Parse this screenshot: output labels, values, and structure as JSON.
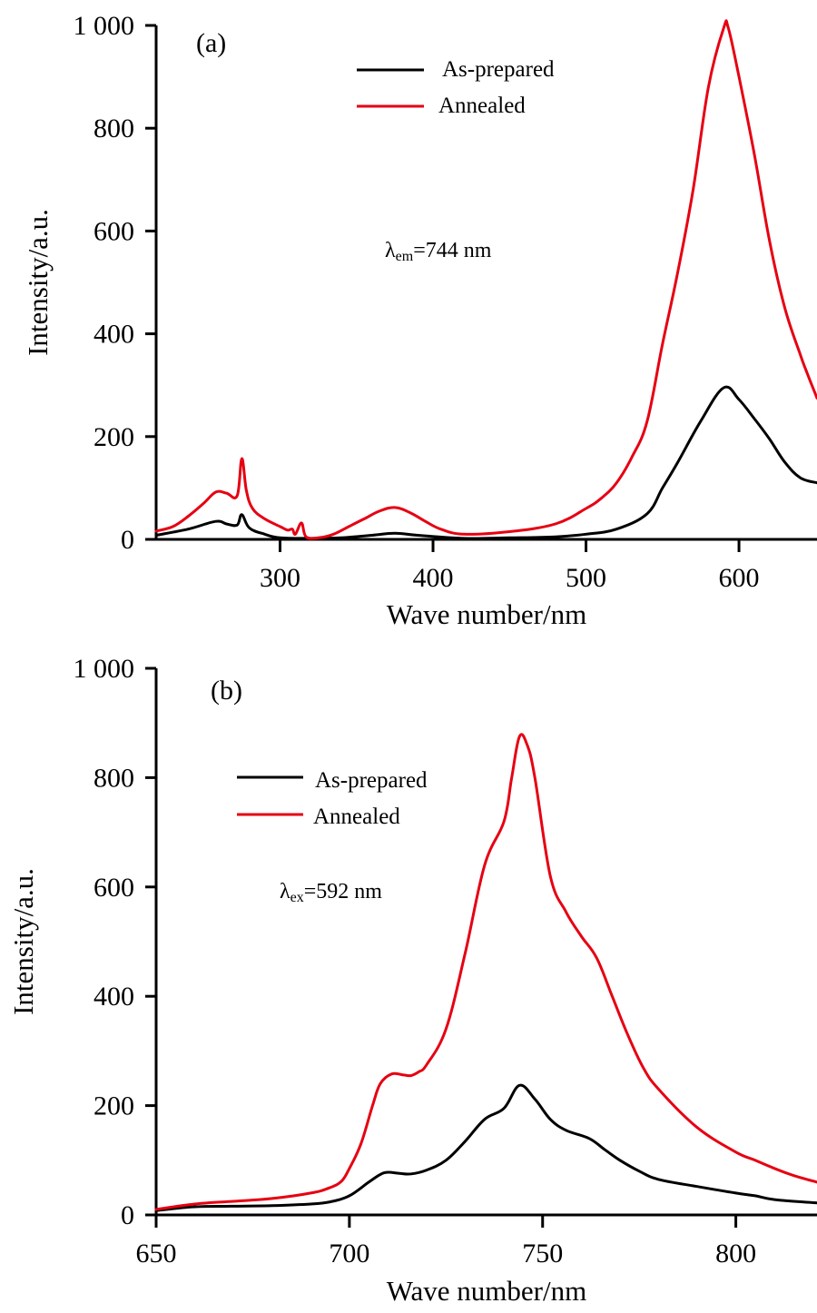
{
  "chart_data": [
    {
      "type": "line",
      "panel_label": "(a)",
      "xlabel": "Wave number/nm",
      "ylabel": "Intensity/a.u.",
      "xlim": [
        219,
        651
      ],
      "ylim": [
        0,
        1000
      ],
      "xticks": [
        300,
        400,
        500,
        600
      ],
      "xtick_labels": [
        "300",
        "400",
        "500",
        "600"
      ],
      "yticks": [
        0,
        200,
        400,
        600,
        800,
        1000
      ],
      "ytick_labels": [
        "0",
        "200",
        "400",
        "600",
        "800",
        "1 000"
      ],
      "grid": false,
      "legend_position": "top-center",
      "annotation": {
        "prefix": "λ",
        "sub": "em",
        "suffix": "=744 nm"
      },
      "series": [
        {
          "name": "As-prepared",
          "color": "#000000",
          "x": [
            219,
            240,
            258,
            265,
            272,
            275,
            280,
            290,
            300,
            320,
            340,
            360,
            375,
            390,
            420,
            450,
            480,
            500,
            520,
            540,
            550,
            560,
            575,
            590,
            600,
            610,
            620,
            630,
            640,
            651
          ],
          "y": [
            8,
            20,
            35,
            30,
            28,
            48,
            22,
            10,
            3,
            2,
            3,
            8,
            12,
            8,
            2,
            3,
            5,
            10,
            20,
            50,
            100,
            150,
            230,
            295,
            272,
            235,
            195,
            150,
            120,
            110
          ]
        },
        {
          "name": "Annealed",
          "color": "#e60012",
          "x": [
            219,
            230,
            240,
            250,
            258,
            265,
            272,
            275,
            278,
            282,
            290,
            300,
            305,
            308,
            310,
            314,
            317,
            325,
            335,
            345,
            355,
            365,
            375,
            385,
            395,
            405,
            420,
            450,
            480,
            500,
            510,
            520,
            530,
            540,
            550,
            560,
            570,
            580,
            590,
            593,
            600,
            610,
            620,
            630,
            640,
            645,
            651
          ],
          "y": [
            16,
            25,
            45,
            70,
            92,
            90,
            85,
            157,
            95,
            60,
            40,
            25,
            18,
            20,
            10,
            32,
            5,
            3,
            10,
            25,
            40,
            55,
            62,
            52,
            35,
            20,
            10,
            15,
            30,
            60,
            80,
            110,
            160,
            230,
            380,
            520,
            680,
            880,
            995,
            995,
            900,
            750,
            580,
            450,
            360,
            320,
            275
          ]
        }
      ]
    },
    {
      "type": "line",
      "panel_label": "(b)",
      "xlabel": "Wave number/nm",
      "ylabel": "Intensity/a.u.",
      "xlim": [
        650,
        821
      ],
      "ylim": [
        0,
        1000
      ],
      "xticks": [
        650,
        700,
        750,
        800
      ],
      "xtick_labels": [
        "650",
        "700",
        "750",
        "800"
      ],
      "yticks": [
        0,
        200,
        400,
        600,
        800,
        1000
      ],
      "ytick_labels": [
        "0",
        "200",
        "400",
        "600",
        "800",
        "1 000"
      ],
      "grid": false,
      "legend_position": "top-left",
      "annotation": {
        "prefix": "λ",
        "sub": "ex",
        "suffix": "=592 nm"
      },
      "series": [
        {
          "name": "As-prepared",
          "color": "#000000",
          "x": [
            650,
            660,
            670,
            680,
            690,
            695,
            700,
            705,
            708,
            710,
            713,
            716,
            720,
            725,
            730,
            735,
            740,
            744,
            748,
            752,
            756,
            762,
            766,
            770,
            775,
            780,
            790,
            800,
            805,
            810,
            821
          ],
          "y": [
            8,
            15,
            16,
            17,
            20,
            24,
            35,
            60,
            74,
            78,
            76,
            75,
            82,
            100,
            135,
            175,
            195,
            237,
            212,
            175,
            155,
            140,
            120,
            100,
            80,
            65,
            52,
            40,
            35,
            28,
            22
          ]
        },
        {
          "name": "Annealed",
          "color": "#e60012",
          "x": [
            650,
            660,
            670,
            680,
            690,
            695,
            698,
            700,
            703,
            706,
            708,
            711,
            714,
            716,
            718,
            720,
            725,
            730,
            735,
            740,
            742,
            744,
            746,
            748,
            752,
            756,
            760,
            764,
            768,
            772,
            776,
            780,
            790,
            800,
            805,
            810,
            815,
            821
          ],
          "y": [
            10,
            20,
            25,
            30,
            40,
            50,
            62,
            85,
            130,
            200,
            240,
            258,
            256,
            255,
            262,
            275,
            340,
            480,
            640,
            720,
            800,
            875,
            860,
            800,
            620,
            555,
            510,
            470,
            400,
            330,
            270,
            230,
            160,
            115,
            100,
            85,
            72,
            60
          ]
        }
      ]
    }
  ]
}
